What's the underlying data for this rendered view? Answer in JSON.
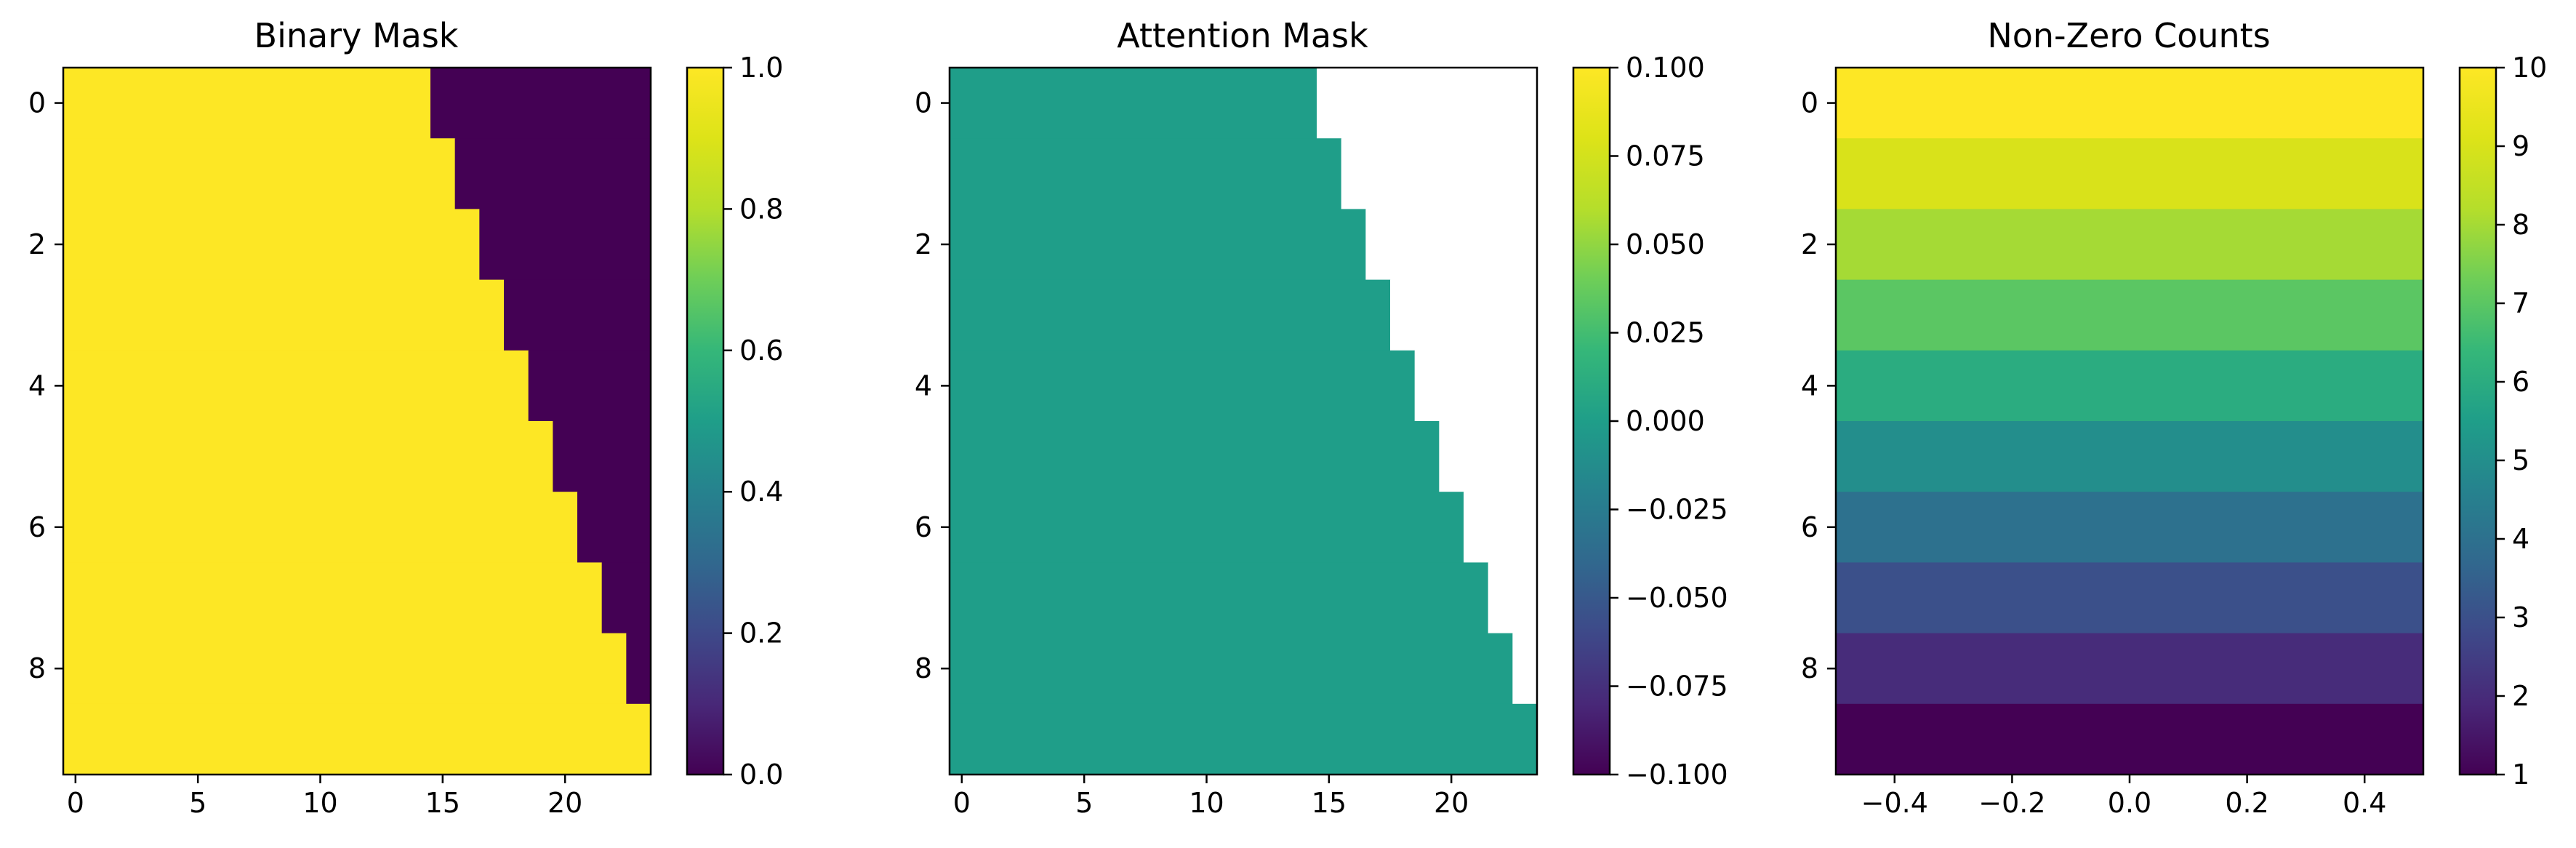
{
  "chart_data": [
    {
      "type": "heatmap",
      "title": "Binary Mask",
      "xlabel": "",
      "ylabel": "",
      "rows": 10,
      "cols": 24,
      "mask_rule": "value 1 where col <= row + 14, else 0",
      "first_zero_col_per_row": [
        15,
        16,
        17,
        18,
        19,
        20,
        21,
        22,
        23,
        24
      ],
      "masked_cells_are_nan": false,
      "x_ticks": [
        0,
        5,
        10,
        15,
        20
      ],
      "y_ticks": [
        0,
        2,
        4,
        6,
        8
      ],
      "x_tick_labels": [
        "0",
        "5",
        "10",
        "15",
        "20"
      ],
      "y_tick_labels": [
        "0",
        "2",
        "4",
        "6",
        "8"
      ],
      "colorbar": {
        "vmin": 0.0,
        "vmax": 1.0,
        "ticks": [
          0.0,
          0.2,
          0.4,
          0.6,
          0.8,
          1.0
        ],
        "tick_labels": [
          "0.0",
          "0.2",
          "0.4",
          "0.6",
          "0.8",
          "1.0"
        ]
      },
      "colormap": "viridis"
    },
    {
      "type": "heatmap",
      "title": "Attention Mask",
      "xlabel": "",
      "ylabel": "",
      "rows": 10,
      "cols": 24,
      "value": 0.0,
      "masked_color": "#ffffff",
      "first_masked_col_per_row": [
        15,
        16,
        17,
        18,
        19,
        20,
        21,
        22,
        23,
        24
      ],
      "x_ticks": [
        0,
        5,
        10,
        15,
        20
      ],
      "y_ticks": [
        0,
        2,
        4,
        6,
        8
      ],
      "x_tick_labels": [
        "0",
        "5",
        "10",
        "15",
        "20"
      ],
      "y_tick_labels": [
        "0",
        "2",
        "4",
        "6",
        "8"
      ],
      "colorbar": {
        "vmin": -0.1,
        "vmax": 0.1,
        "ticks": [
          -0.1,
          -0.075,
          -0.05,
          -0.025,
          0.0,
          0.025,
          0.05,
          0.075,
          0.1
        ],
        "tick_labels": [
          "−0.100",
          "−0.075",
          "−0.050",
          "−0.025",
          "0.000",
          "0.025",
          "0.050",
          "0.075",
          "0.100"
        ]
      },
      "colormap": "viridis"
    },
    {
      "type": "heatmap",
      "title": "Non-Zero Counts",
      "xlabel": "",
      "ylabel": "",
      "rows": 10,
      "cols": 1,
      "values": [
        10,
        9,
        8,
        7,
        6,
        5,
        4,
        3,
        2,
        1
      ],
      "x_range": [
        -0.5,
        0.5
      ],
      "x_ticks": [
        -0.4,
        -0.2,
        0.0,
        0.2,
        0.4
      ],
      "x_tick_labels": [
        "−0.4",
        "−0.2",
        "0.0",
        "0.2",
        "0.4"
      ],
      "y_ticks": [
        0,
        2,
        4,
        6,
        8
      ],
      "y_tick_labels": [
        "0",
        "2",
        "4",
        "6",
        "8"
      ],
      "colorbar": {
        "vmin": 1,
        "vmax": 10,
        "ticks": [
          1,
          2,
          3,
          4,
          5,
          6,
          7,
          8,
          9,
          10
        ],
        "tick_labels": [
          "1",
          "2",
          "3",
          "4",
          "5",
          "6",
          "7",
          "8",
          "9",
          "10"
        ]
      },
      "colormap": "viridis"
    }
  ]
}
